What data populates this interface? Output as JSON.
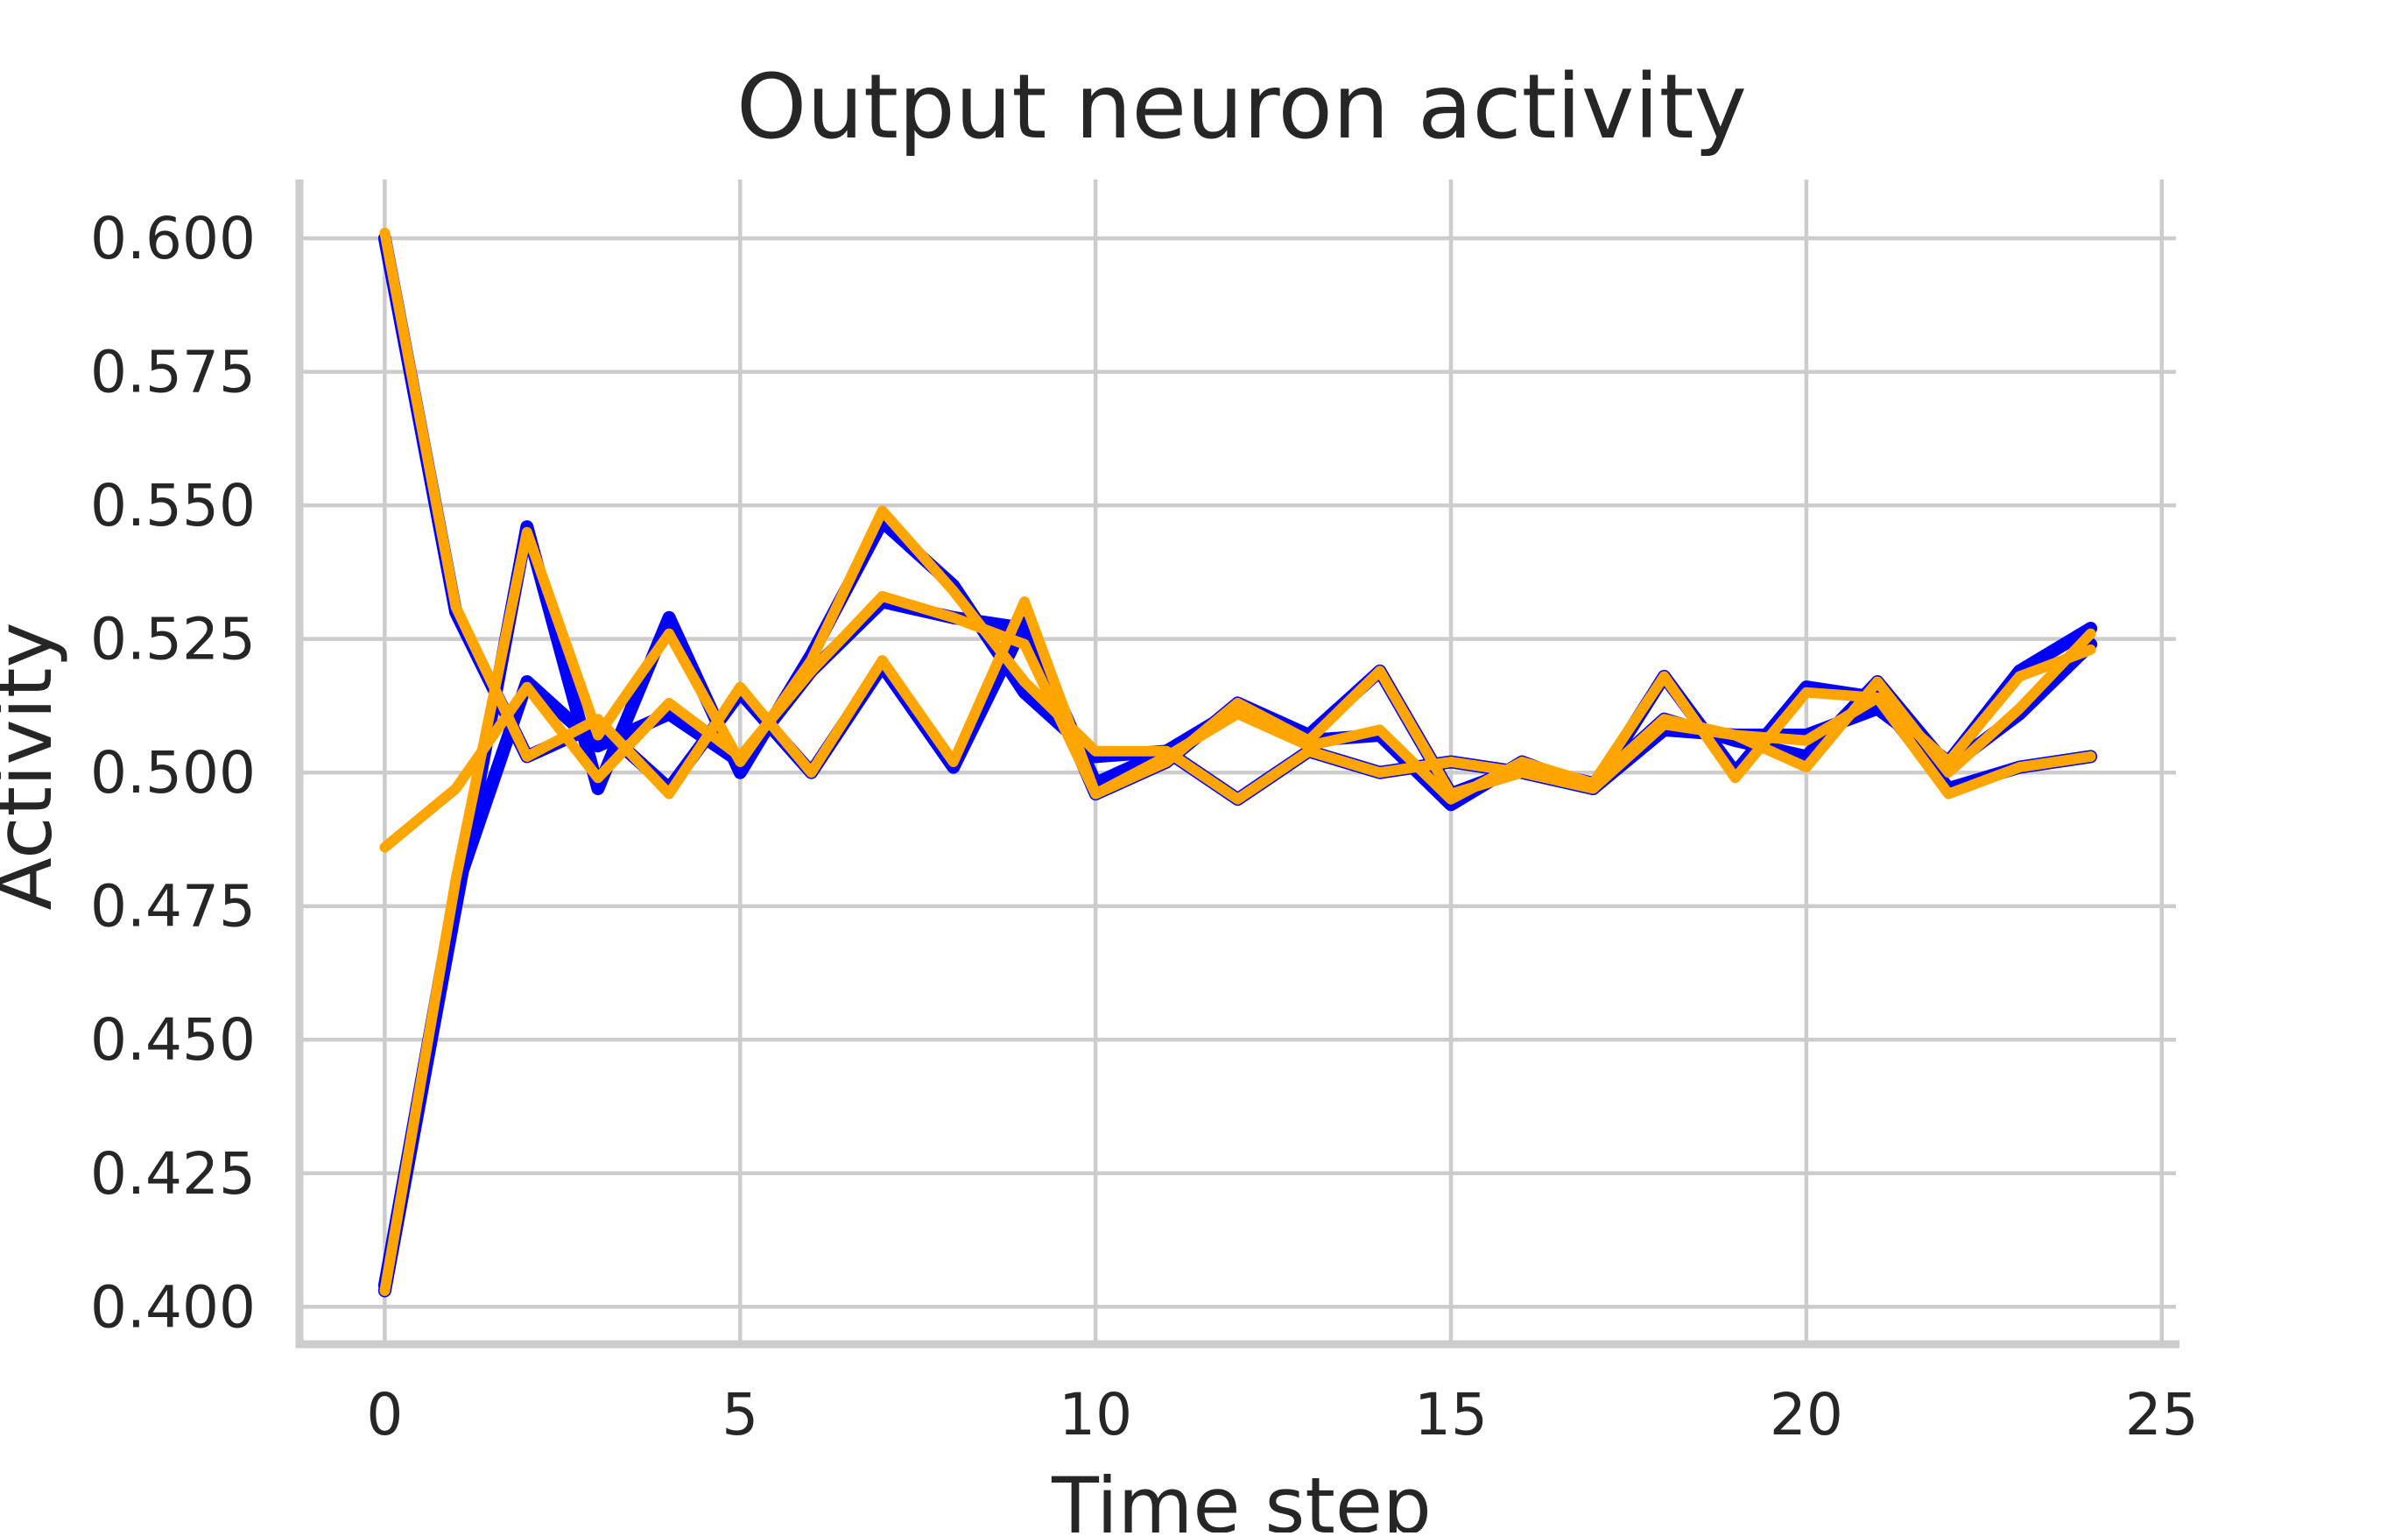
{
  "chart_data": {
    "type": "line",
    "title": "Output neuron activity",
    "xlabel": "Time step",
    "ylabel": "Activity",
    "xlim": [
      -1.2,
      25.2
    ],
    "ylim": [
      0.393,
      0.611
    ],
    "xticks": [
      0,
      5,
      10,
      15,
      20,
      25
    ],
    "xtick_labels": [
      "0",
      "5",
      "10",
      "15",
      "20",
      "25"
    ],
    "yticks": [
      0.4,
      0.425,
      0.45,
      0.475,
      0.5,
      0.525,
      0.55,
      0.575,
      0.6
    ],
    "ytick_labels": [
      "0.400",
      "0.425",
      "0.450",
      "0.475",
      "0.500",
      "0.525",
      "0.550",
      "0.575",
      "0.600"
    ],
    "grid": true,
    "legend": "none",
    "x": [
      0,
      1,
      2,
      3,
      4,
      5,
      6,
      7,
      8,
      9,
      10,
      11,
      12,
      13,
      14,
      15,
      16,
      17,
      18,
      19,
      20,
      21,
      22,
      23,
      24
    ],
    "target_series": [
      {
        "color": "#0000ff",
        "values": [
          0.6,
          0.53,
          0.503,
          0.509,
          0.497,
          0.515,
          0.5,
          0.52,
          0.501,
          0.528,
          0.498,
          0.504,
          0.512,
          0.506,
          0.507,
          0.494,
          0.502,
          0.497,
          0.518,
          0.5,
          0.516,
          0.514,
          0.497,
          0.501,
          0.503
        ]
      },
      {
        "color": "#0000ff",
        "values": [
          0.403,
          0.475,
          0.546,
          0.497,
          0.529,
          0.5,
          0.522,
          0.547,
          0.535,
          0.515,
          0.503,
          0.504,
          0.495,
          0.504,
          0.5,
          0.502,
          0.5,
          0.497,
          0.508,
          0.507,
          0.507,
          0.512,
          0.502,
          0.519,
          0.527
        ]
      },
      {
        "color": "#0000ff",
        "values": [
          0.404,
          0.478,
          0.517,
          0.505,
          0.511,
          0.502,
          0.519,
          0.532,
          0.529,
          0.527,
          0.496,
          0.502,
          0.513,
          0.507,
          0.519,
          0.496,
          0.501,
          0.498,
          0.51,
          0.506,
          0.503,
          0.517,
          0.501,
          0.511,
          0.524
        ]
      }
    ],
    "output_series": [
      {
        "color": "#ffa500",
        "values": [
          0.601,
          0.531,
          0.503,
          0.51,
          0.496,
          0.516,
          0.5,
          0.521,
          0.502,
          0.532,
          0.496,
          0.503,
          0.511,
          0.505,
          0.508,
          0.495,
          0.502,
          0.498,
          0.518,
          0.499,
          0.515,
          0.514,
          0.496,
          0.501,
          0.503
        ]
      },
      {
        "color": "#ffa500",
        "values": [
          0.403,
          0.48,
          0.545,
          0.507,
          0.526,
          0.502,
          0.521,
          0.549,
          0.534,
          0.517,
          0.504,
          0.504,
          0.495,
          0.504,
          0.5,
          0.502,
          0.5,
          0.497,
          0.509,
          0.507,
          0.506,
          0.514,
          0.502,
          0.518,
          0.523
        ]
      },
      {
        "color": "#ffa500",
        "values": [
          0.486,
          0.497,
          0.516,
          0.499,
          0.513,
          0.503,
          0.519,
          0.533,
          0.529,
          0.524,
          0.496,
          0.502,
          0.513,
          0.506,
          0.519,
          0.496,
          0.5,
          0.498,
          0.51,
          0.507,
          0.501,
          0.517,
          0.5,
          0.512,
          0.526
        ]
      }
    ]
  }
}
